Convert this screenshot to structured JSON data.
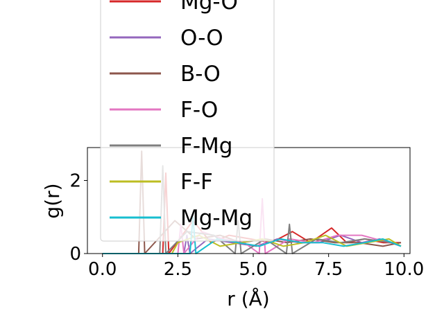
{
  "chart_data": {
    "type": "line",
    "title": "",
    "xlabel": "r (Å)",
    "ylabel": "g(r)",
    "xlim": [
      -0.5,
      10.2
    ],
    "ylim": [
      0,
      2.9
    ],
    "xticks": [
      0.0,
      2.5,
      5.0,
      7.5,
      10.0
    ],
    "xtick_labels": [
      "0.0",
      "2.5",
      "5.0",
      "7.5",
      "10.0"
    ],
    "yticks": [
      0,
      2
    ],
    "ytick_labels": [
      "0",
      "2"
    ],
    "grid": false,
    "legend_placement": "upper-left (overflowing above axes)",
    "series": [
      {
        "name": "Mg-O",
        "color": "#d62728",
        "x": [
          0,
          2.0,
          2.1,
          2.2,
          3.0,
          3.6,
          4.2,
          4.9,
          5.6,
          6.3,
          6.9,
          7.6,
          8.1,
          8.7,
          9.3,
          9.9
        ],
        "y": [
          0,
          0,
          2.2,
          0,
          0.9,
          0.3,
          0.5,
          0.4,
          0.3,
          0.6,
          0.3,
          0.7,
          0.3,
          0.4,
          0.3,
          0.3
        ]
      },
      {
        "name": "O-O",
        "color": "#9467bd",
        "x": [
          0,
          2.7,
          2.8,
          2.9,
          3.5,
          4.3,
          5.1,
          5.8,
          6.5,
          7.2,
          7.9,
          8.6,
          9.2,
          9.9
        ],
        "y": [
          0,
          0,
          0.5,
          0,
          0.4,
          0.3,
          0.2,
          0.4,
          0.3,
          0.3,
          0.5,
          0.3,
          0.4,
          0.2
        ]
      },
      {
        "name": "B-O",
        "color": "#8c564b",
        "x": [
          0,
          1.2,
          1.3,
          1.4,
          2.4,
          3.1,
          3.9,
          4.6,
          5.4,
          6.1,
          6.9,
          7.7,
          8.5,
          9.3,
          9.9
        ],
        "y": [
          0,
          0,
          2.8,
          0,
          0.9,
          0.4,
          0.5,
          0.3,
          0.4,
          0.3,
          0.4,
          0.3,
          0.3,
          0.2,
          0.3
        ]
      },
      {
        "name": "F-O",
        "color": "#e377c2",
        "x": [
          0,
          2.5,
          2.6,
          2.7,
          3.3,
          4.0,
          4.7,
          5.2,
          5.3,
          5.4,
          6.2,
          7.0,
          7.8,
          8.6,
          9.5
        ],
        "y": [
          0,
          0,
          0.8,
          0,
          0.6,
          0.4,
          0.3,
          0,
          1.5,
          0,
          0.4,
          0.3,
          0.5,
          0.5,
          0.3
        ]
      },
      {
        "name": "F-Mg",
        "color": "#7f7f7f",
        "x": [
          0,
          1.9,
          2.0,
          2.1,
          2.8,
          3.7,
          4.4,
          4.5,
          4.6,
          5.4,
          6.1,
          6.2,
          6.3,
          7.1,
          7.9,
          8.7,
          9.6
        ],
        "y": [
          0,
          0,
          2.4,
          0,
          0.6,
          0.5,
          0,
          0.9,
          0,
          0.4,
          0,
          0.8,
          0,
          0.4,
          0.3,
          0.4,
          0.3
        ]
      },
      {
        "name": "F-F",
        "color": "#bcbd22",
        "x": [
          0,
          2.3,
          2.5,
          3.2,
          3.9,
          4.6,
          5.3,
          6.0,
          6.7,
          7.4,
          8.1,
          8.8,
          9.5,
          9.9
        ],
        "y": [
          0,
          0,
          0.3,
          0.5,
          0.2,
          0.3,
          0.4,
          0.2,
          0.3,
          0.5,
          0.2,
          0.3,
          0.4,
          0.2
        ]
      },
      {
        "name": "Mg-Mg",
        "color": "#17becf",
        "x": [
          0,
          2.9,
          3.0,
          3.1,
          3.8,
          4.5,
          5.2,
          5.9,
          6.6,
          7.3,
          8.0,
          8.7,
          9.3,
          9.9
        ],
        "y": [
          0,
          0,
          1.0,
          0,
          0.4,
          0.3,
          0.2,
          0.4,
          0.3,
          0.3,
          0.2,
          0.3,
          0.4,
          0.2
        ]
      }
    ]
  }
}
